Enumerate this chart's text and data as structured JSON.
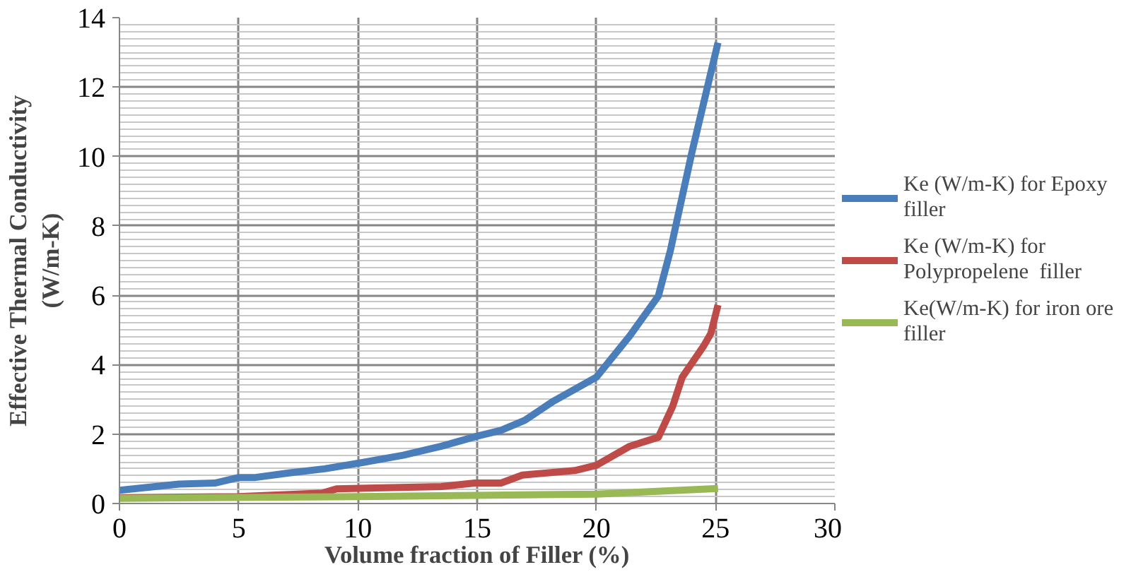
{
  "chart_data": {
    "type": "line",
    "xlabel": "Volume fraction of Filler (%)",
    "ylabel": "Effective Thermal Conductivity (W/m-K)",
    "xlim": [
      0,
      30
    ],
    "xticks": [
      0,
      5,
      10,
      15,
      20,
      25,
      30
    ],
    "ylim": [
      0,
      14
    ],
    "yticks": [
      0,
      2,
      4,
      6,
      8,
      10,
      12,
      14
    ],
    "grid": true,
    "legend": "right",
    "line_style": "solid",
    "marker": "none",
    "series": [
      {
        "name": "Ke (W/m-K) for Epoxy filler",
        "color": "#4a7ebb",
        "x": [
          0,
          2.5,
          4,
          5,
          5.7,
          7.1,
          8.6,
          10.1,
          11.9,
          13.5,
          15,
          16,
          17,
          18.2,
          20,
          21.4,
          22.6,
          23.1,
          24,
          25.1
        ],
        "values": [
          0.38,
          0.56,
          0.59,
          0.75,
          0.75,
          0.88,
          1.0,
          1.17,
          1.39,
          1.65,
          1.94,
          2.11,
          2.4,
          2.95,
          3.64,
          4.83,
          5.98,
          7.28,
          10.1,
          13.28
        ]
      },
      {
        "name": "Ke (W/m-K) for Polypropelene  filler",
        "color": "#be4b48",
        "x": [
          0,
          5,
          8.5,
          9.1,
          13.5,
          14.9,
          16,
          16.9,
          19.1,
          20,
          21.4,
          22.6,
          23.2,
          23.6,
          24.5,
          24.8,
          25.1
        ],
        "values": [
          0.17,
          0.2,
          0.3,
          0.42,
          0.49,
          0.59,
          0.59,
          0.82,
          0.95,
          1.1,
          1.65,
          1.91,
          2.8,
          3.64,
          4.54,
          4.9,
          5.72
        ]
      },
      {
        "name": "Ke(W/m-K) for iron ore filler",
        "color": "#98b954",
        "x": [
          0,
          10,
          20,
          25.1
        ],
        "values": [
          0.15,
          0.2,
          0.27,
          0.43
        ]
      }
    ]
  }
}
